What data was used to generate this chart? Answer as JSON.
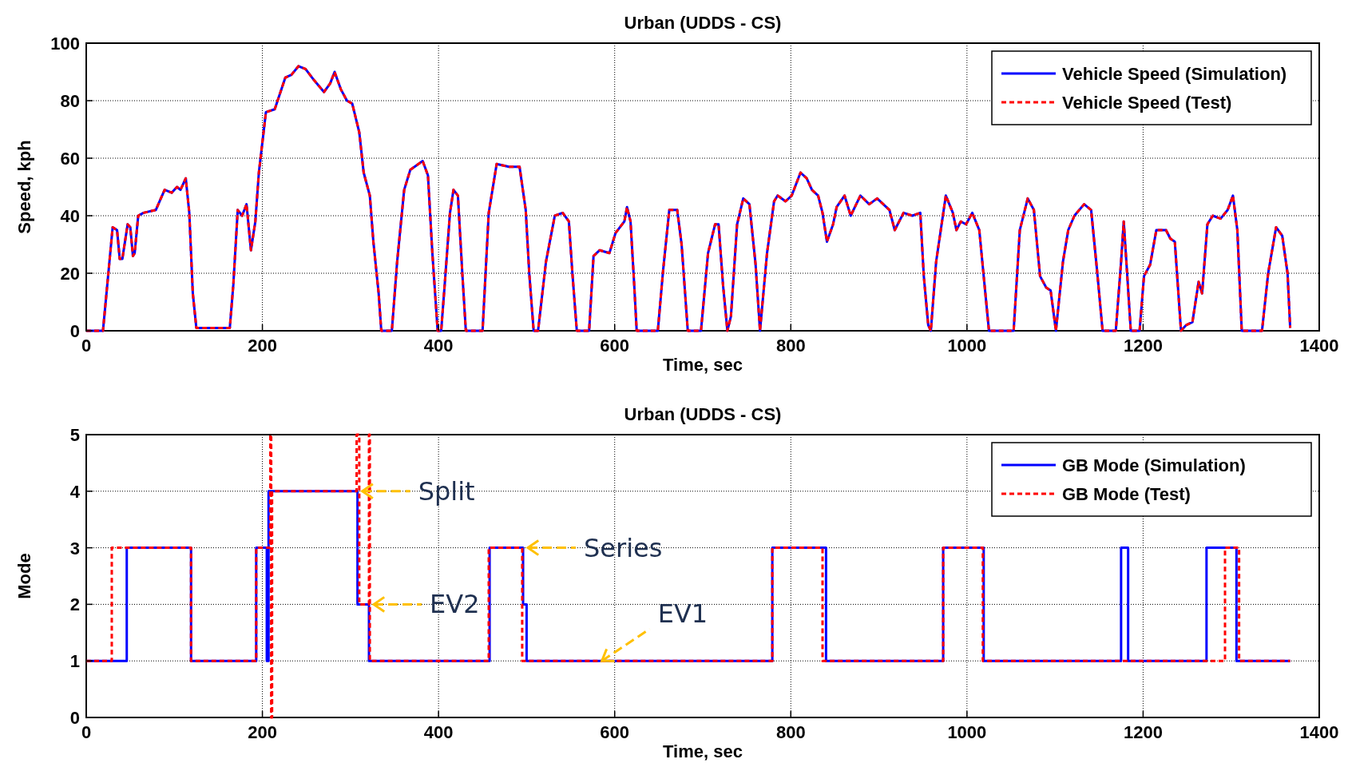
{
  "chart_data": [
    {
      "type": "line",
      "title": "Urban (UDDS - CS)",
      "xlabel": "Time, sec",
      "ylabel": "Speed, kph",
      "x": [
        0,
        19,
        30,
        35,
        38,
        41,
        47,
        50,
        53,
        55,
        59,
        65,
        79,
        89,
        97,
        103,
        107,
        113,
        117,
        121,
        125,
        163,
        167,
        172,
        177,
        182,
        187,
        192,
        196,
        204,
        214,
        226,
        233,
        241,
        249,
        259,
        270,
        277,
        282,
        289,
        296,
        302,
        310,
        315,
        322,
        326,
        332,
        335,
        347,
        353,
        361,
        368,
        382,
        388,
        393,
        399,
        403,
        407,
        413,
        417,
        422,
        427,
        431,
        450,
        457,
        466,
        480,
        492,
        499,
        503,
        508,
        513,
        522,
        532,
        541,
        548,
        552,
        557,
        571,
        576,
        583,
        594,
        601,
        611,
        614,
        618,
        622,
        625,
        649,
        655,
        662,
        671,
        676,
        683,
        698,
        706,
        714,
        718,
        723,
        728,
        732,
        739,
        746,
        753,
        760,
        765,
        773,
        781,
        785,
        794,
        801,
        811,
        818,
        824,
        831,
        836,
        841,
        848,
        852,
        861,
        868,
        879,
        889,
        898,
        912,
        918,
        928,
        938,
        947,
        951,
        956,
        959,
        965,
        976,
        984,
        988,
        993,
        999,
        1006,
        1014,
        1019,
        1025,
        1053,
        1060,
        1069,
        1076,
        1083,
        1090,
        1095,
        1101,
        1109,
        1115,
        1122,
        1133,
        1141,
        1148,
        1154,
        1169,
        1175,
        1178,
        1181,
        1186,
        1196,
        1201,
        1208,
        1215,
        1226,
        1231,
        1236,
        1243,
        1249,
        1256,
        1263,
        1267,
        1273,
        1279,
        1288,
        1296,
        1302,
        1307,
        1312,
        1335,
        1342,
        1351,
        1358,
        1364,
        1367
      ],
      "series": [
        {
          "name": "Vehicle Speed (Simulation)",
          "color": "#0000ff",
          "line_style": "solid",
          "values": [
            0,
            0,
            36,
            35,
            25,
            25,
            37,
            36,
            26,
            27,
            40,
            41,
            42,
            49,
            48,
            50,
            49,
            53,
            41,
            13,
            1,
            1,
            16,
            42,
            40,
            44,
            28,
            38,
            55,
            76,
            77,
            88,
            89,
            92,
            91,
            87,
            83,
            86,
            90,
            84,
            80,
            79,
            69,
            55,
            47,
            31,
            13,
            0,
            0,
            24,
            49,
            56,
            59,
            54,
            27,
            0,
            0,
            16,
            41,
            49,
            47,
            20,
            0,
            0,
            41,
            58,
            57,
            57,
            42,
            20,
            0,
            0,
            24,
            40,
            41,
            38,
            20,
            0,
            0,
            26,
            28,
            27,
            34,
            38,
            43,
            38,
            17,
            0,
            0,
            21,
            42,
            42,
            30,
            0,
            0,
            27,
            37,
            37,
            16,
            0,
            5,
            37,
            46,
            44,
            23,
            0,
            27,
            45,
            47,
            45,
            47,
            55,
            53,
            49,
            47,
            41,
            31,
            37,
            43,
            47,
            40,
            47,
            44,
            46,
            42,
            35,
            41,
            40,
            41,
            19,
            2,
            0,
            24,
            47,
            41,
            35,
            38,
            37,
            41,
            35,
            19,
            0,
            0,
            35,
            46,
            42,
            19,
            15,
            14,
            0,
            24,
            35,
            40,
            44,
            42,
            20,
            0,
            0,
            24,
            38,
            24,
            0,
            0,
            19,
            23,
            35,
            35,
            32,
            31,
            0,
            2,
            3,
            17,
            13,
            37,
            40,
            39,
            42,
            47,
            35,
            0,
            0,
            20,
            36,
            33,
            20,
            1
          ]
        },
        {
          "name": "Vehicle Speed (Test)",
          "color": "#ff0000",
          "line_style": "dashed",
          "values": [
            0,
            0,
            36,
            35,
            25,
            25,
            37,
            36,
            26,
            27,
            40,
            41,
            42,
            49,
            48,
            50,
            49,
            53,
            41,
            13,
            1,
            1,
            16,
            42,
            40,
            44,
            28,
            38,
            55,
            76,
            77,
            88,
            89,
            92,
            91,
            87,
            83,
            86,
            90,
            84,
            80,
            79,
            69,
            55,
            47,
            31,
            13,
            0,
            0,
            24,
            49,
            56,
            59,
            54,
            27,
            0,
            0,
            16,
            41,
            49,
            47,
            20,
            0,
            0,
            41,
            58,
            57,
            57,
            42,
            20,
            0,
            0,
            24,
            40,
            41,
            38,
            20,
            0,
            0,
            26,
            28,
            27,
            34,
            38,
            43,
            38,
            17,
            0,
            0,
            21,
            42,
            42,
            30,
            0,
            0,
            27,
            37,
            37,
            16,
            0,
            5,
            37,
            46,
            44,
            23,
            0,
            27,
            45,
            47,
            45,
            47,
            55,
            53,
            49,
            47,
            41,
            31,
            37,
            43,
            47,
            40,
            47,
            44,
            46,
            42,
            35,
            41,
            40,
            41,
            19,
            2,
            0,
            24,
            47,
            41,
            35,
            38,
            37,
            41,
            35,
            19,
            0,
            0,
            35,
            46,
            42,
            19,
            15,
            14,
            0,
            24,
            35,
            40,
            44,
            42,
            20,
            0,
            0,
            24,
            38,
            24,
            0,
            0,
            19,
            23,
            35,
            35,
            32,
            31,
            0,
            2,
            3,
            17,
            13,
            37,
            40,
            39,
            42,
            47,
            35,
            0,
            0,
            20,
            36,
            33,
            20,
            1
          ]
        }
      ],
      "xlim": [
        0,
        1400
      ],
      "xticks": [
        0,
        200,
        400,
        600,
        800,
        1000,
        1200,
        1400
      ],
      "ylim": [
        0,
        100
      ],
      "yticks": [
        0,
        20,
        40,
        60,
        80,
        100
      ],
      "grid": true,
      "legend": "top right"
    },
    {
      "type": "step",
      "title": "Urban (UDDS - CS)",
      "xlabel": "Time, sec",
      "ylabel": "Mode",
      "series": [
        {
          "name": "GB Mode (Simulation)",
          "color": "#0000ff",
          "line_style": "solid",
          "x": [
            0,
            46,
            119,
            193,
            205,
            207,
            308,
            321,
            458,
            496,
            500,
            779,
            840,
            973,
            1019,
            1175,
            1183,
            1272,
            1306,
            1367
          ],
          "values": [
            1,
            3,
            1,
            3,
            1,
            4,
            2,
            1,
            3,
            2,
            1,
            3,
            1,
            3,
            1,
            3,
            1,
            3,
            1,
            1
          ]
        },
        {
          "name": "GB Mode (Test)",
          "color": "#ff0000",
          "line_style": "dashed",
          "x": [
            0,
            29,
            119,
            193,
            209,
            210,
            211,
            307,
            310,
            321,
            322,
            457,
            495,
            779,
            836,
            973,
            1018,
            1293,
            1309,
            1367
          ],
          "values": [
            1,
            3,
            1,
            3,
            5,
            0,
            4,
            5,
            2,
            5,
            1,
            3,
            1,
            3,
            1,
            3,
            1,
            3,
            1,
            1
          ]
        }
      ],
      "annotations": [
        {
          "text": "Split",
          "x": 308,
          "y": 4
        },
        {
          "text": "Series",
          "x": 496,
          "y": 3
        },
        {
          "text": "EV2",
          "x": 321,
          "y": 2
        },
        {
          "text": "EV1",
          "x": 580,
          "y": 1
        }
      ],
      "xlim": [
        0,
        1400
      ],
      "xticks": [
        0,
        200,
        400,
        600,
        800,
        1000,
        1200,
        1400
      ],
      "ylim": [
        0,
        5
      ],
      "yticks": [
        0,
        1,
        2,
        3,
        4,
        5
      ],
      "grid": true,
      "legend": "top right"
    }
  ]
}
